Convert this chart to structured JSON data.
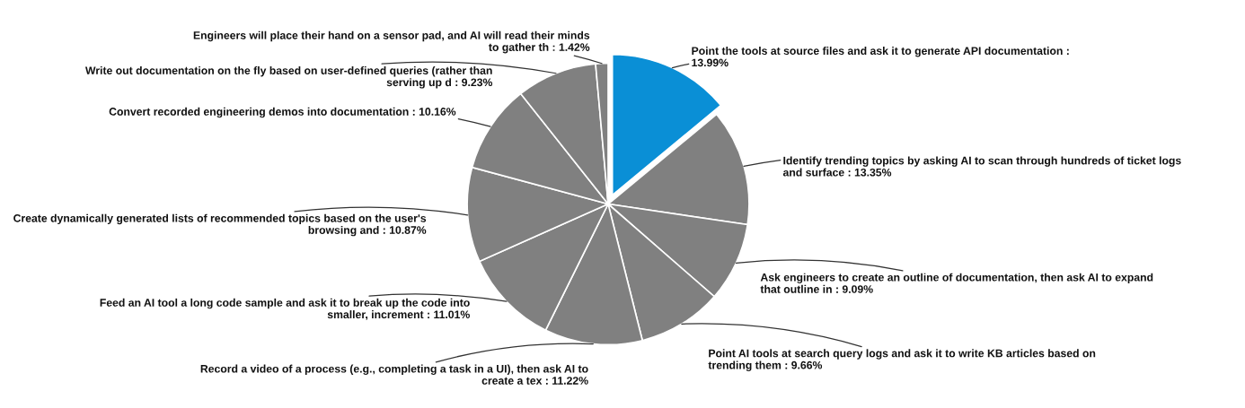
{
  "chart_data": {
    "type": "pie",
    "categories": [
      "Point the tools at source files and ask it to generate API documentation : 13.99%",
      "Identify trending topics by asking AI to scan through hundreds of ticket logs and surface : 13.35%",
      "Ask engineers to create an outline of documentation, then ask AI to expand that outline in : 9.09%",
      "Point AI tools at search query logs and ask it to write KB articles based on trending them : 9.66%",
      "Record a video of a process (e.g., completing a task in a UI), then ask AI to create a tex : 11.22%",
      "Feed an AI tool a long code sample and ask it to break up the code into smaller, increment : 11.01%",
      "Create dynamically generated lists of recommended topics based on the user's browsing and : 10.87%",
      "Convert recorded engineering demos into documentation : 10.16%",
      "Write out documentation on the fly based on user-defined queries (rather than serving up d : 9.23%",
      "Engineers will place their hand on a sensor pad, and AI will read their minds to gather th : 1.42%"
    ],
    "values": [
      13.99,
      13.35,
      9.09,
      9.66,
      11.22,
      11.01,
      10.87,
      10.16,
      9.23,
      1.42
    ],
    "colors": [
      "#0a8fd6",
      "#808080",
      "#808080",
      "#808080",
      "#808080",
      "#808080",
      "#808080",
      "#808080",
      "#808080",
      "#808080"
    ]
  }
}
